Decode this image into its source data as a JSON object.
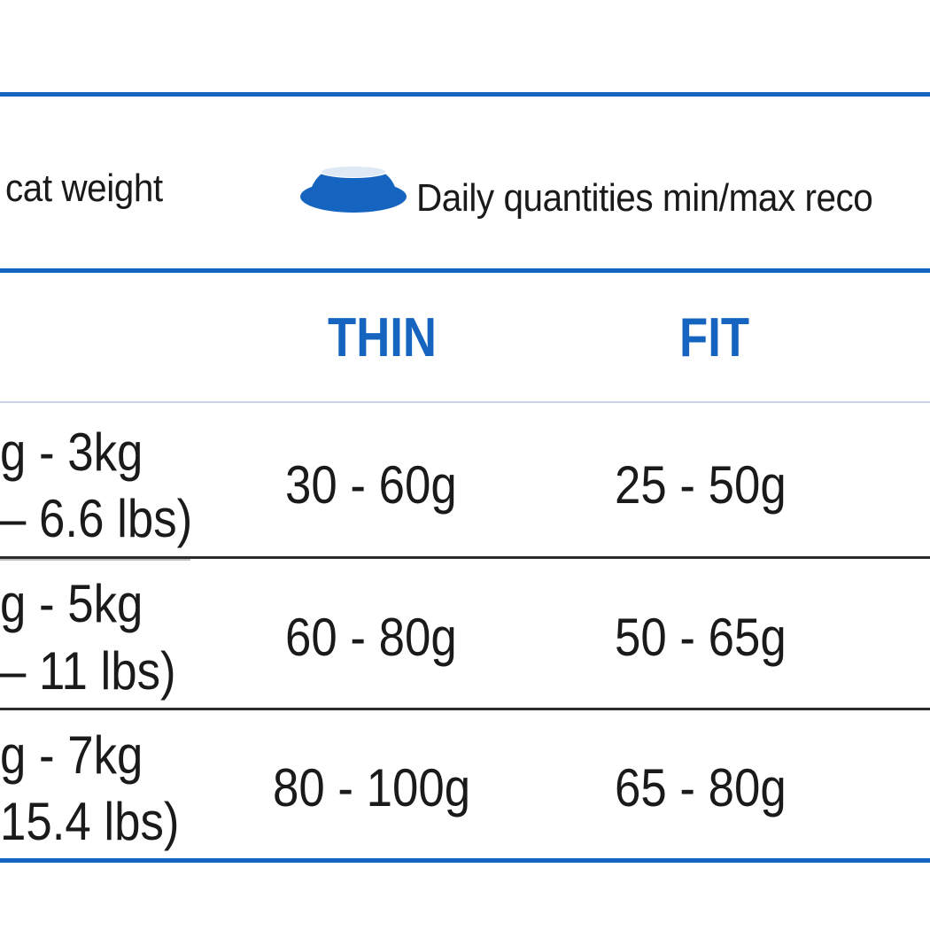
{
  "header": {
    "weight_label": "cat weight",
    "quantity_label": "Daily quantities min/max reco"
  },
  "columns": {
    "thin": "THIN",
    "fit": "FIT"
  },
  "rows": [
    {
      "weight_kg": "g - 3kg",
      "weight_lbs": "– 6.6 lbs)",
      "thin": "30 - 60g",
      "fit": "25 - 50g"
    },
    {
      "weight_kg": "g - 5kg",
      "weight_lbs": "– 11 lbs)",
      "thin": "60 - 80g",
      "fit": "50 - 65g"
    },
    {
      "weight_kg": "g - 7kg",
      "weight_lbs": "15.4 lbs)",
      "thin": "80 - 100g",
      "fit": "65 - 80g"
    }
  ],
  "colors": {
    "accent": "#1565c0",
    "text": "#1a1a1a",
    "row_rule": "#2b2b2b"
  },
  "icons": {
    "bowl": "food-bowl-icon"
  }
}
